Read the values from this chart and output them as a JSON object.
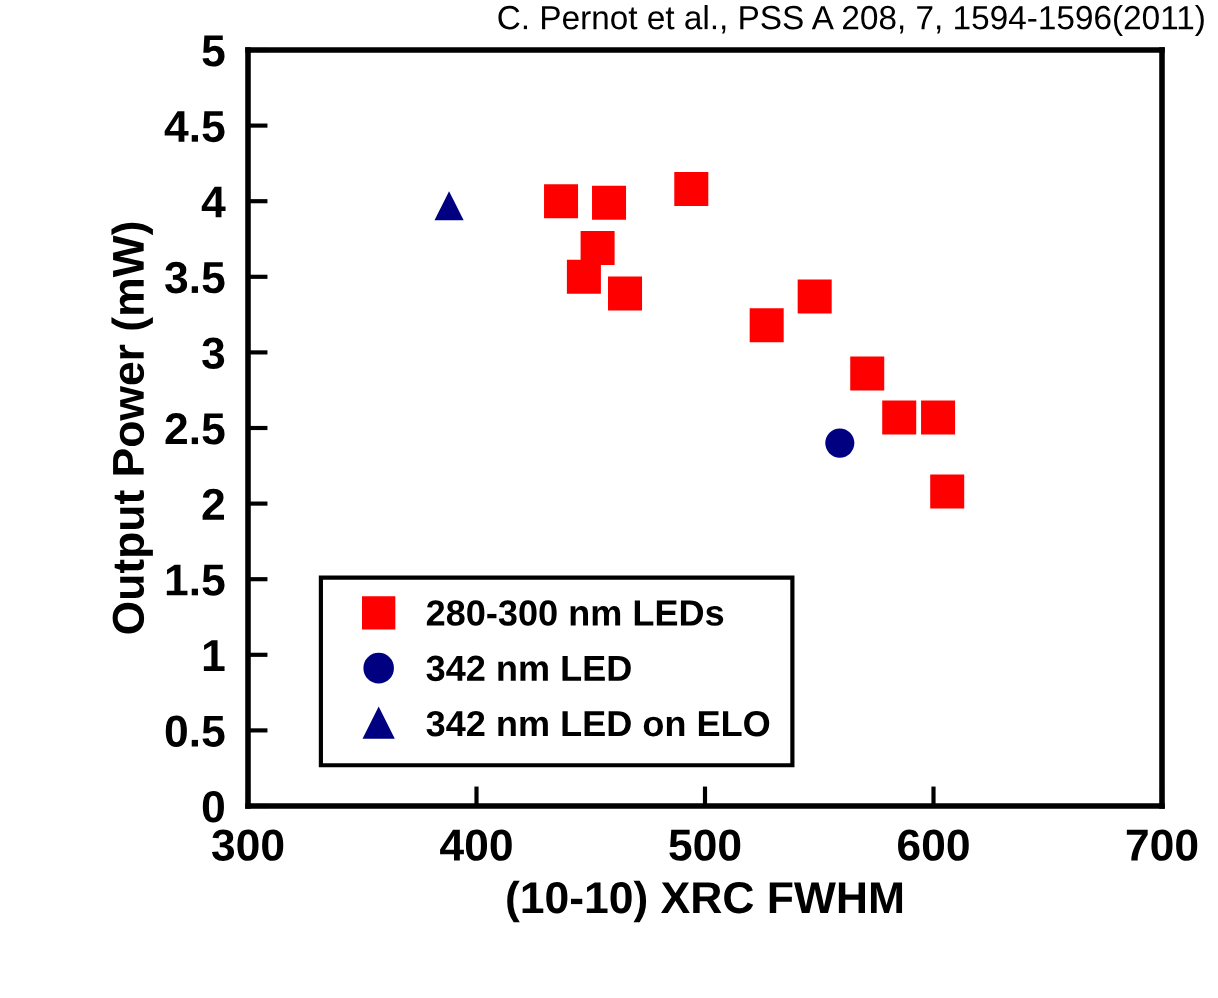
{
  "chart_data": {
    "type": "scatter",
    "xlabel": "(10-10) XRC FWHM",
    "ylabel": "Output Power (mW)",
    "annotations": [
      "C. Pernot et al., PSS A 208, 7, 1594-1596(2011)"
    ],
    "xlim": [
      300,
      700
    ],
    "xticks": [
      300,
      400,
      500,
      600,
      700
    ],
    "ylim": [
      0,
      5
    ],
    "yticks": [
      0,
      0.5,
      1,
      1.5,
      2,
      2.5,
      3,
      3.5,
      4,
      4.5,
      5
    ],
    "grid": false,
    "legend": "bottom left",
    "series": [
      {
        "name": "280-300 nm LEDs",
        "color": "#ff0000",
        "marker": "square",
        "x": [
          437,
          458,
          494,
          453,
          447,
          465,
          527,
          548,
          571,
          585,
          602,
          606
        ],
        "values": [
          4.0,
          3.99,
          4.08,
          3.69,
          3.5,
          3.39,
          3.18,
          3.37,
          2.86,
          2.57,
          2.57,
          2.08
        ]
      },
      {
        "name": "342 nm LED",
        "color": "#000080",
        "marker": "circle",
        "x": [
          559
        ],
        "values": [
          2.4
        ]
      },
      {
        "name": "342 nm LED on ELO",
        "color": "#000080",
        "marker": "triangle",
        "x": [
          388
        ],
        "values": [
          3.97
        ]
      }
    ]
  }
}
